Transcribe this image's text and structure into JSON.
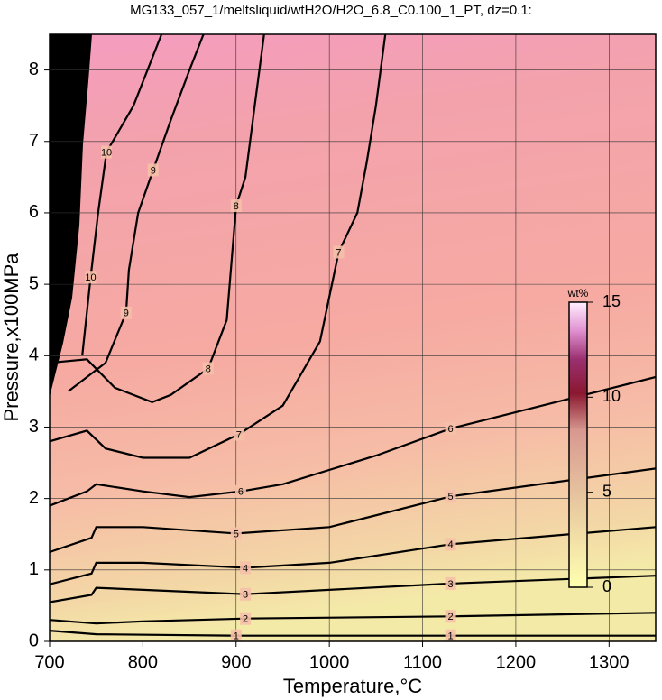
{
  "chart_data": {
    "type": "contour",
    "title": "MG133_057_1/meltsliquid/wtH2O/H2O_6.8_C0.100_1_PT, dz=0.1:",
    "xlabel": "Temperature,°C",
    "ylabel": "Pressure,x100MPa",
    "xlim": [
      700,
      1350
    ],
    "ylim": [
      0,
      8.5
    ],
    "xticks": [
      700,
      800,
      900,
      1000,
      1100,
      1200,
      1300
    ],
    "yticks": [
      0,
      1,
      2,
      3,
      4,
      5,
      6,
      7,
      8
    ],
    "grid": true,
    "contours": [
      {
        "level": 1,
        "x": [
          700,
          750,
          900,
          1130,
          1350
        ],
        "y": [
          0.15,
          0.1,
          0.08,
          0.08,
          0.08
        ]
      },
      {
        "level": 2,
        "x": [
          700,
          750,
          800,
          910,
          1130,
          1350
        ],
        "y": [
          0.3,
          0.25,
          0.28,
          0.32,
          0.35,
          0.4
        ]
      },
      {
        "level": 3,
        "x": [
          700,
          745,
          750,
          910,
          1130,
          1350
        ],
        "y": [
          0.55,
          0.65,
          0.75,
          0.66,
          0.81,
          0.92
        ]
      },
      {
        "level": 4,
        "x": [
          700,
          745,
          750,
          800,
          910,
          1000,
          1130,
          1350
        ],
        "y": [
          0.8,
          0.95,
          1.1,
          1.1,
          1.03,
          1.1,
          1.36,
          1.6
        ]
      },
      {
        "level": 5,
        "x": [
          700,
          745,
          750,
          800,
          900,
          1000,
          1130,
          1350
        ],
        "y": [
          1.25,
          1.45,
          1.6,
          1.6,
          1.51,
          1.6,
          2.03,
          2.42
        ]
      },
      {
        "level": 6,
        "x": [
          700,
          740,
          750,
          800,
          850,
          905,
          950,
          1050,
          1130,
          1350
        ],
        "y": [
          1.9,
          2.1,
          2.2,
          2.1,
          2.02,
          2.1,
          2.2,
          2.6,
          2.98,
          3.7
        ]
      },
      {
        "level": 7,
        "x": [
          700,
          740,
          760,
          800,
          850,
          903,
          950,
          990,
          1010,
          1030,
          1040,
          1050,
          1060
        ],
        "y": [
          2.8,
          2.95,
          2.7,
          2.57,
          2.57,
          2.9,
          3.3,
          4.2,
          5.45,
          6.0,
          6.7,
          7.5,
          8.5
        ]
      },
      {
        "level": 8,
        "x": [
          700,
          740,
          770,
          810,
          830,
          870,
          890,
          900,
          910,
          920,
          930
        ],
        "y": [
          3.9,
          3.95,
          3.55,
          3.35,
          3.45,
          3.82,
          4.5,
          6.1,
          6.5,
          7.5,
          8.5
        ]
      },
      {
        "level": 9,
        "x": [
          720,
          760,
          782,
          785,
          795,
          811,
          830,
          850,
          865
        ],
        "y": [
          3.5,
          3.9,
          4.6,
          5.2,
          6.0,
          6.6,
          7.3,
          8.0,
          8.5
        ]
      },
      {
        "level": 10,
        "x": [
          735,
          744,
          752,
          761,
          790,
          820
        ],
        "y": [
          4.0,
          5.1,
          6.0,
          6.85,
          7.5,
          8.5
        ]
      }
    ],
    "colorbar": {
      "label": "wt%",
      "lim": [
        0,
        15
      ],
      "ticks": [
        0,
        5,
        10,
        15
      ]
    }
  }
}
